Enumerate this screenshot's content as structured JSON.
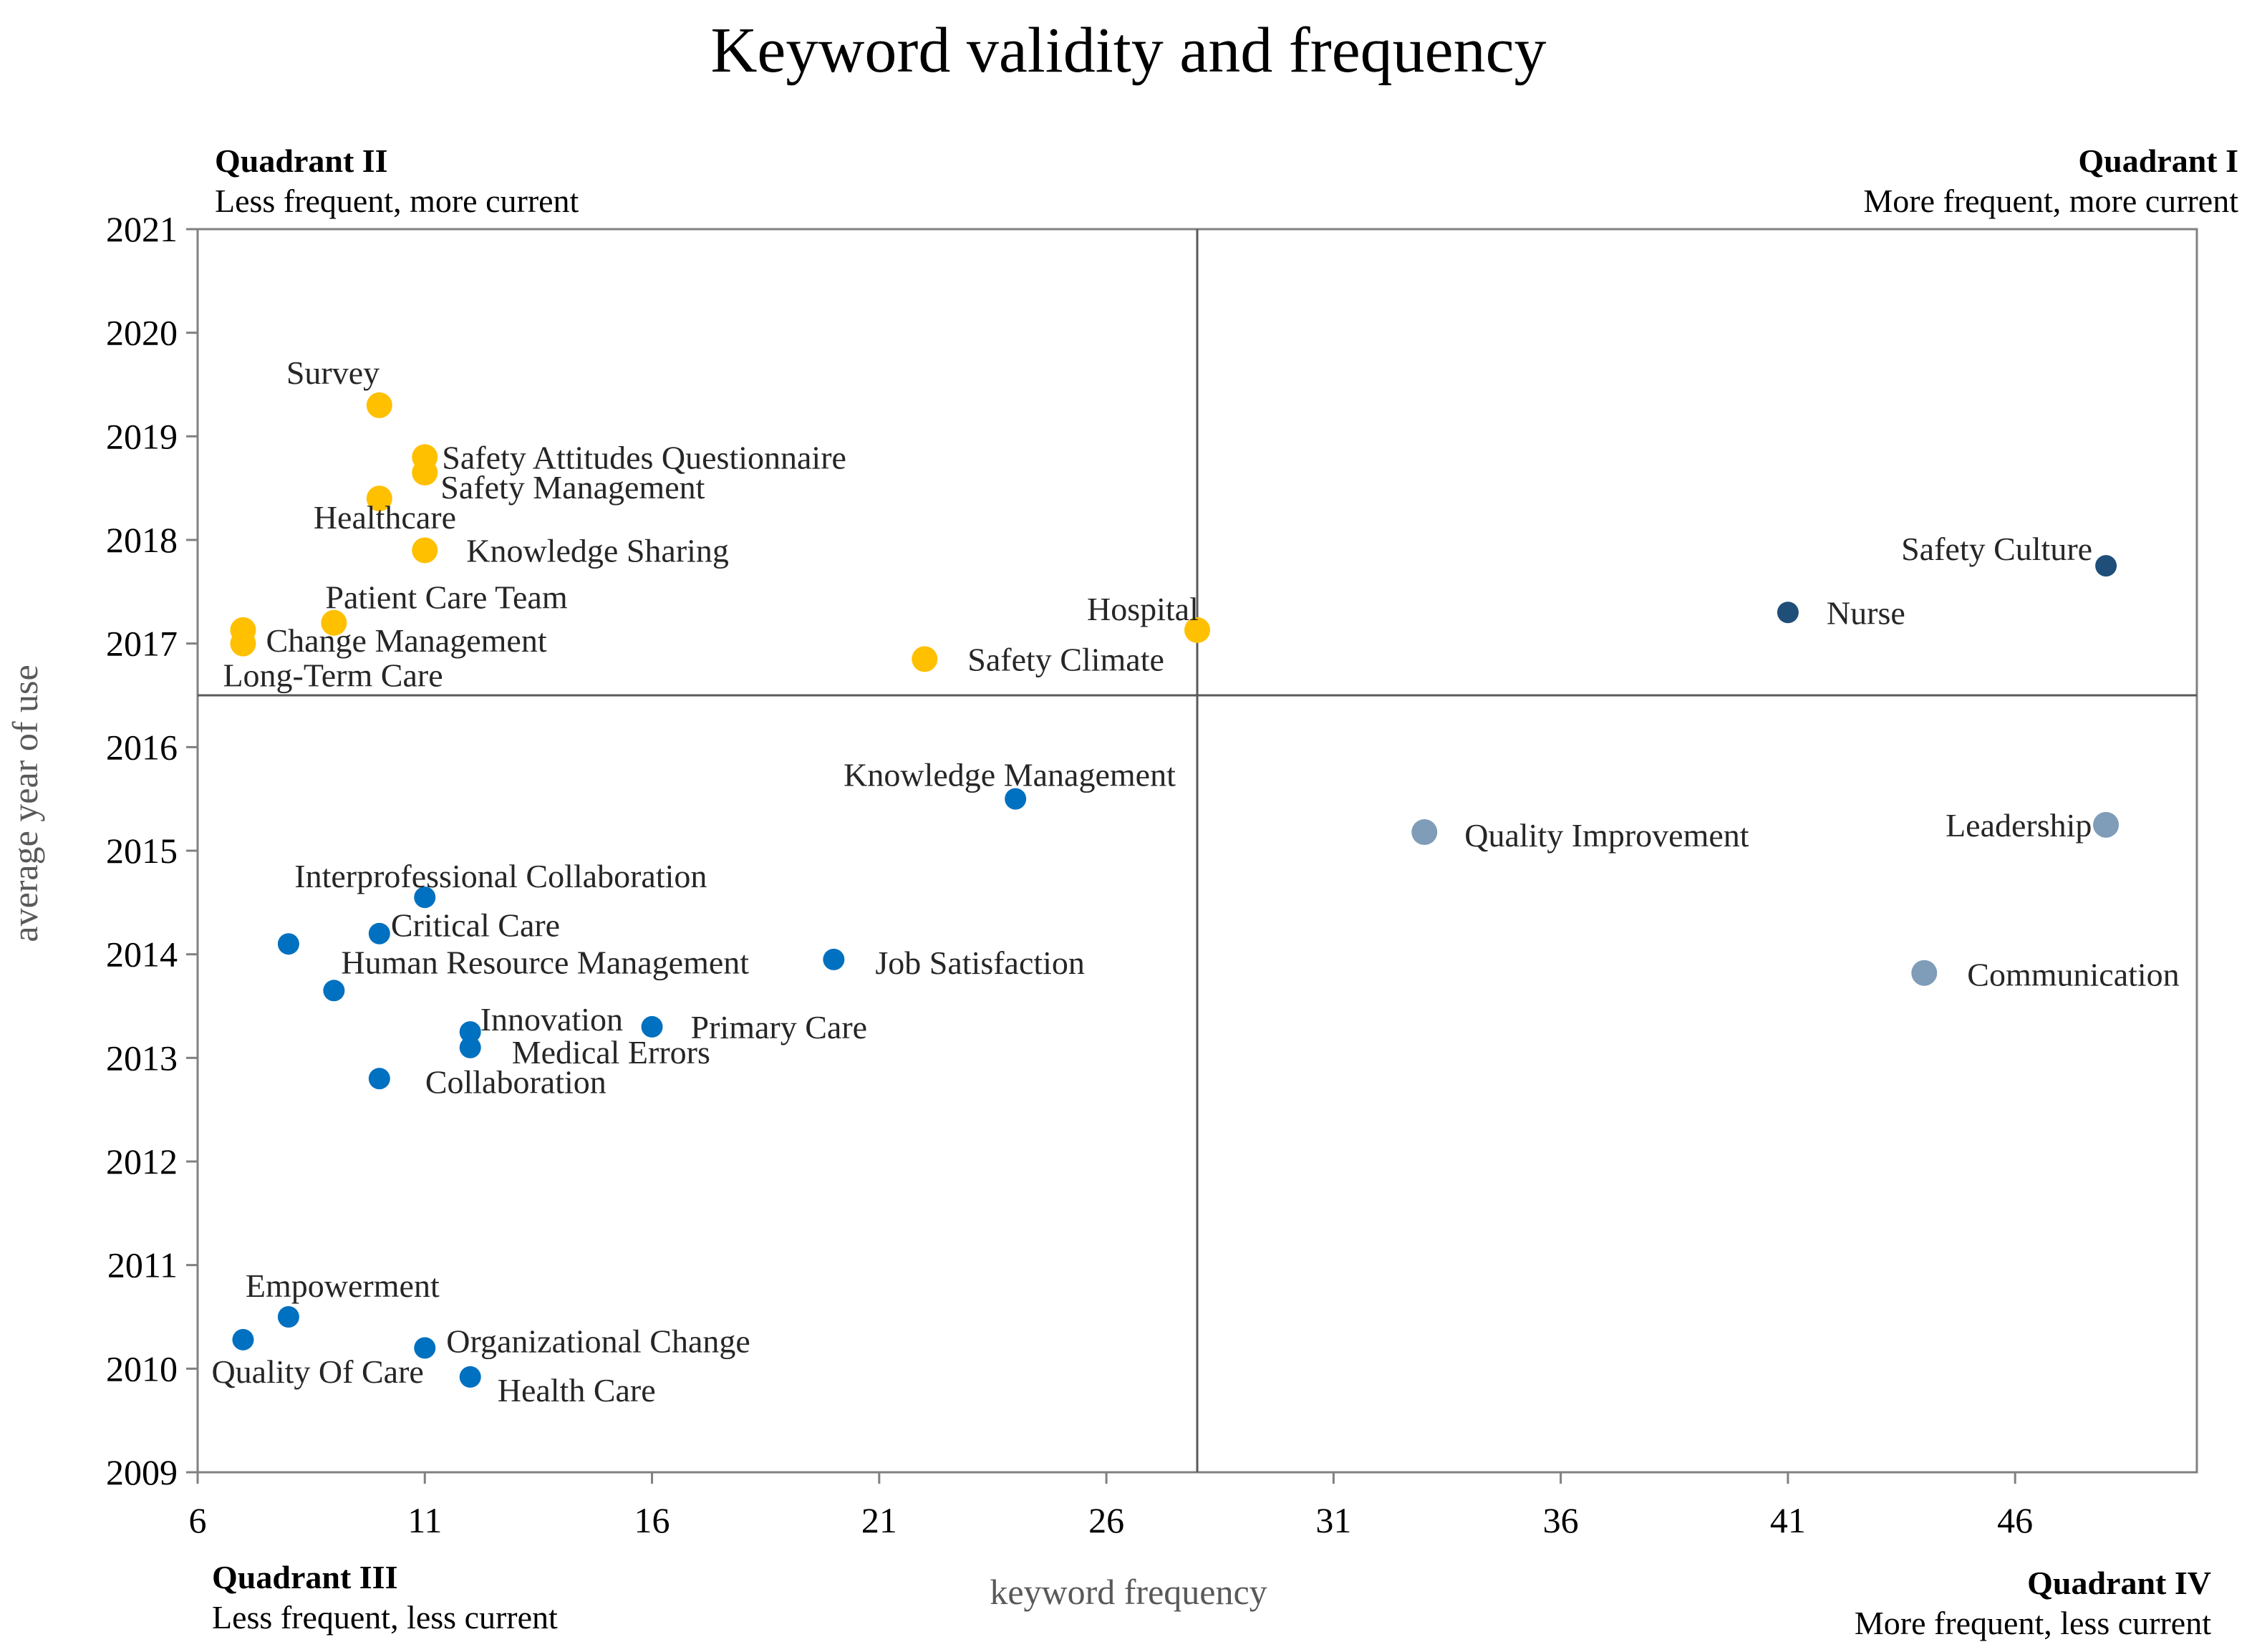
{
  "chart_data": {
    "type": "scatter",
    "title": "Keyword validity and frequency",
    "xlabel": "keyword frequency",
    "ylabel": "average year of use",
    "xlim": [
      6,
      50
    ],
    "ylim": [
      2009,
      2021
    ],
    "xticks": [
      "6",
      "11",
      "16",
      "21",
      "26",
      "31",
      "36",
      "41",
      "46"
    ],
    "yticks": [
      "2009",
      "2010",
      "2011",
      "2012",
      "2013",
      "2014",
      "2015",
      "2016",
      "2017",
      "2018",
      "2019",
      "2020",
      "2021"
    ],
    "divider_x": 28,
    "divider_y": 2016.5,
    "grid": false,
    "quadrants": [
      {
        "id": "II",
        "title": "Quadrant II",
        "subtitle": "Less frequent, more current",
        "position": "top-left"
      },
      {
        "id": "I",
        "title": "Quadrant I",
        "subtitle": "More frequent, more current",
        "position": "top-right"
      },
      {
        "id": "III",
        "title": "Quadrant III",
        "subtitle": "Less frequent, less current",
        "position": "bottom-left"
      },
      {
        "id": "IV",
        "title": "Quadrant IV",
        "subtitle": "More frequent, less current",
        "position": "bottom-right"
      }
    ],
    "series": [
      {
        "quadrant": "II",
        "color": "#FFC000",
        "points": [
          {
            "label": "Survey",
            "x": 10,
            "y": 2019.3
          },
          {
            "label": "Safety Attitudes Questionnaire",
            "x": 11,
            "y": 2018.8
          },
          {
            "label": "Safety Management",
            "x": 11,
            "y": 2018.65
          },
          {
            "label": "Healthcare",
            "x": 10,
            "y": 2018.4
          },
          {
            "label": "Knowledge Sharing",
            "x": 11,
            "y": 2017.9
          },
          {
            "label": "Patient Care Team",
            "x": 9,
            "y": 2017.2
          },
          {
            "label": "Change Management",
            "x": 7,
            "y": 2017.13
          },
          {
            "label": "Long-Term Care",
            "x": 7,
            "y": 2017.0
          },
          {
            "label": "Safety Climate",
            "x": 22,
            "y": 2016.85
          },
          {
            "label": "Hospital",
            "x": 28,
            "y": 2017.13
          }
        ]
      },
      {
        "quadrant": "I",
        "color": "#1F4E79",
        "points": [
          {
            "label": "Safety Culture",
            "x": 48,
            "y": 2017.75
          },
          {
            "label": "Nurse",
            "x": 41,
            "y": 2017.3
          }
        ]
      },
      {
        "quadrant": "III",
        "color": "#0070C0",
        "points": [
          {
            "label": "Knowledge Management",
            "x": 24,
            "y": 2015.5
          },
          {
            "label": "Interprofessional Collaboration",
            "x": 11,
            "y": 2014.55
          },
          {
            "label": "Critical Care",
            "x": 10,
            "y": 2014.2
          },
          {
            "label": "",
            "x": 8,
            "y": 2014.1
          },
          {
            "label": "Human Resource Management",
            "x": 9,
            "y": 2013.65
          },
          {
            "label": "Job Satisfaction",
            "x": 20,
            "y": 2013.95
          },
          {
            "label": "Innovation",
            "x": 12,
            "y": 2013.25
          },
          {
            "label": "Medical Errors",
            "x": 12,
            "y": 2013.1
          },
          {
            "label": "Primary Care",
            "x": 16,
            "y": 2013.3
          },
          {
            "label": "Collaboration",
            "x": 10,
            "y": 2012.8
          },
          {
            "label": "Empowerment",
            "x": 8,
            "y": 2010.5
          },
          {
            "label": "Quality Of Care",
            "x": 7,
            "y": 2010.28
          },
          {
            "label": "Organizational Change",
            "x": 11,
            "y": 2010.2
          },
          {
            "label": "Health Care",
            "x": 12,
            "y": 2009.92
          }
        ]
      },
      {
        "quadrant": "IV",
        "color": "#7F9CB8",
        "points": [
          {
            "label": "Quality Improvement",
            "x": 33,
            "y": 2015.18
          },
          {
            "label": "Leadership",
            "x": 48,
            "y": 2015.25
          },
          {
            "label": "Communication",
            "x": 44,
            "y": 2013.82
          }
        ]
      }
    ]
  }
}
